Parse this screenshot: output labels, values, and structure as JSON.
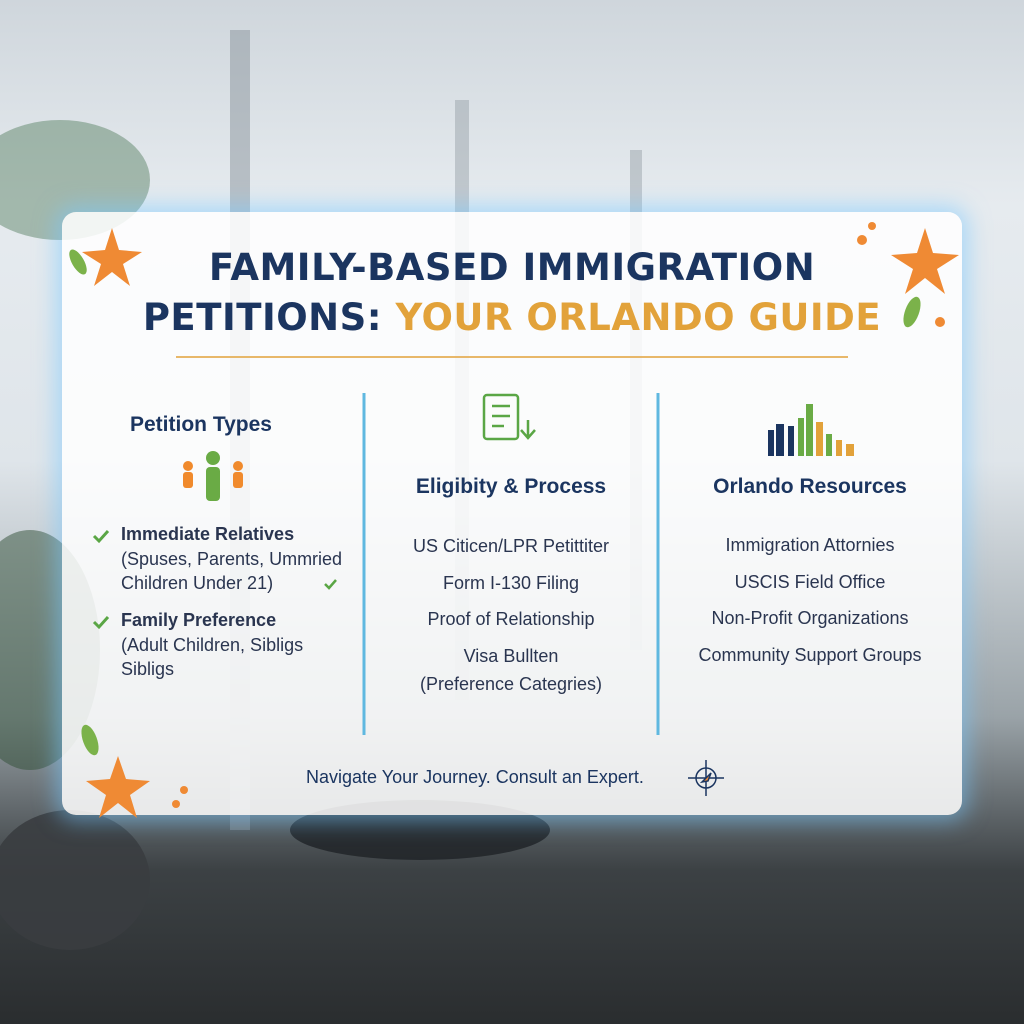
{
  "title": {
    "line1": "FAMILY-BASED IMMIGRATION",
    "line2_a": "PETITIONS:",
    "line2_b": "YOUR ORLANDO GUIDE"
  },
  "columns": [
    {
      "heading": "Petition Types",
      "groups": [
        {
          "label": "Immediate Relatives",
          "details": [
            "(Spuses, Parents, Ummried",
            "Children Under 21)"
          ]
        },
        {
          "label": "Family Preference",
          "details": [
            "(Adult Children, Sibligs",
            "Sibligs"
          ]
        }
      ]
    },
    {
      "heading": "Eligibity & Process",
      "items": [
        "US Citicen/LPR Petittiter",
        "Form I-130 Filing",
        "Proof of Relationship",
        "Visa Bullten",
        "(Preference Categries)"
      ]
    },
    {
      "heading": "Orlando Resources",
      "items": [
        "Immigration Attornies",
        "USCIS Field Office",
        "Non-Profit Organizations",
        "Community Support Groups"
      ]
    }
  ],
  "footer": "Navigate Your Journey. Consult an Expert."
}
